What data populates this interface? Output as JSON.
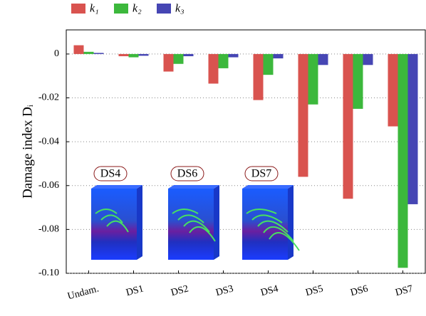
{
  "chart_data": {
    "type": "bar",
    "ylabel": "Damage index Dᵢ",
    "categories": [
      "Undam.",
      "DS1",
      "DS2",
      "DS3",
      "DS4",
      "DS5",
      "DS6",
      "DS7"
    ],
    "series": [
      {
        "name": "k₁",
        "color": "#d9534f",
        "values": [
          0.004,
          -0.001,
          -0.008,
          -0.0135,
          -0.021,
          -0.056,
          -0.066,
          -0.033
        ]
      },
      {
        "name": "k₂",
        "color": "#3cb83c",
        "values": [
          0.001,
          -0.0015,
          -0.0045,
          -0.0065,
          -0.0095,
          -0.023,
          -0.025,
          -0.0975
        ]
      },
      {
        "name": "k₃",
        "color": "#4646b4",
        "values": [
          0.0005,
          -0.0008,
          -0.001,
          -0.0015,
          -0.002,
          -0.005,
          -0.005,
          -0.0685
        ]
      }
    ],
    "ylim": [
      -0.1,
      0.011
    ],
    "yticks": [
      0,
      -0.02,
      -0.04,
      -0.06,
      {
        "value": -0.08,
        "label": "-0.08"
      },
      {
        "value": -0.1,
        "label": "-0.10"
      }
    ],
    "grid": true,
    "insets": [
      "DS4",
      "DS6",
      "DS7"
    ]
  }
}
